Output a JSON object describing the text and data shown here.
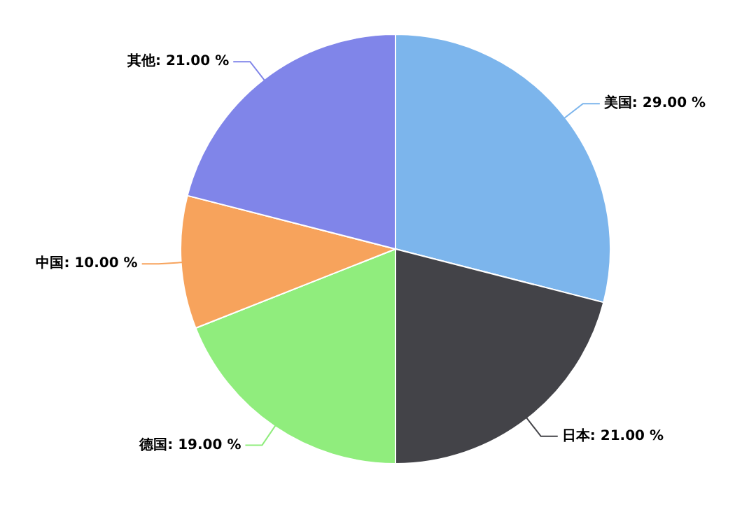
{
  "chart_data": {
    "type": "pie",
    "categories": [
      "美国",
      "日本",
      "德国",
      "中国",
      "其他"
    ],
    "values": [
      29,
      21,
      19,
      10,
      21
    ],
    "value_labels": [
      "29.00 %",
      "21.00 %",
      "19.00 %",
      "10.00 %",
      "21.00 %"
    ],
    "colors": [
      "#7cb5ec",
      "#434348",
      "#90ed7d",
      "#f7a35c",
      "#8085e9"
    ],
    "legend": false
  }
}
